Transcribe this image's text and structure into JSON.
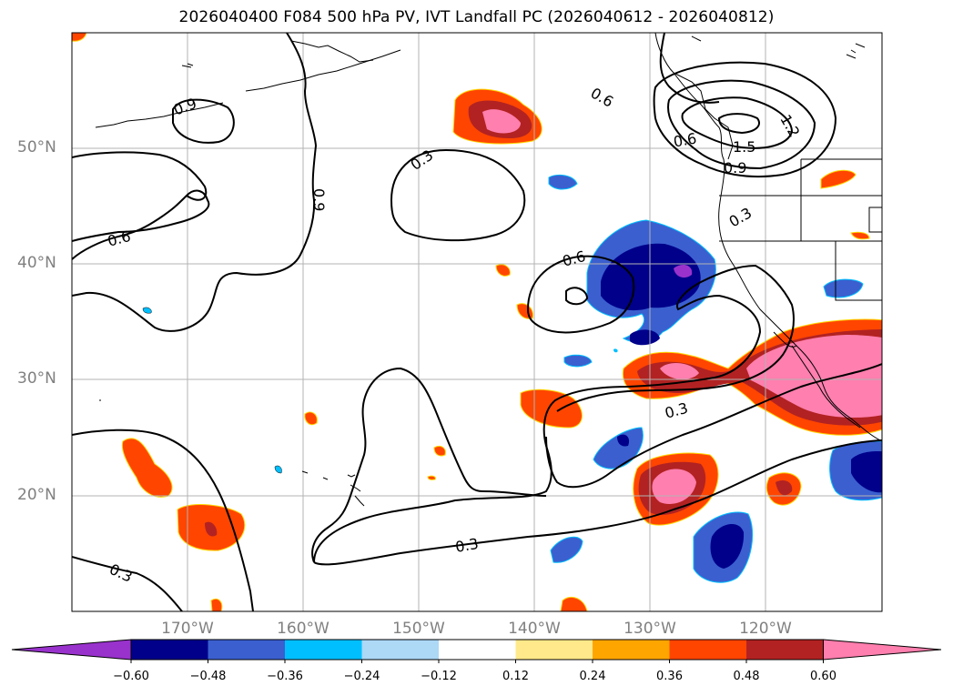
{
  "title": "2026040400 F084 500 hPa PV, IVT Landfall PC (2026040612 - 2026040812)",
  "latitude_labels": [
    "50°N",
    "40°N",
    "30°N",
    "20°N"
  ],
  "longitude_labels": [
    "170°W",
    "160°W",
    "150°W",
    "140°W",
    "130°W",
    "120°W"
  ],
  "contour_labels": [
    "0.9",
    "0.9",
    "0.6",
    "0.6",
    "0.6",
    "0.3",
    "0.3",
    "0.3",
    "0.3",
    "0.3",
    "1.2",
    "1.5",
    "0.9",
    "0.6"
  ],
  "colorbar": {
    "tick_labels": [
      "−0.60",
      "−0.48",
      "−0.36",
      "−0.24",
      "−0.12",
      "0.12",
      "0.24",
      "0.36",
      "0.48",
      "0.60"
    ],
    "colors": [
      "#9932cc",
      "#00008b",
      "#3b5fcf",
      "#00bfff",
      "#add8f6",
      "#ffffff",
      "#ffe98a",
      "#ffa500",
      "#ff4500",
      "#b22222",
      "#ff7fae"
    ],
    "extend": "both"
  },
  "colors": {
    "land_outline": "#000000",
    "gridline": "#b3b3b3",
    "axis_label": "#808080",
    "pv_contour": "#000000"
  }
}
